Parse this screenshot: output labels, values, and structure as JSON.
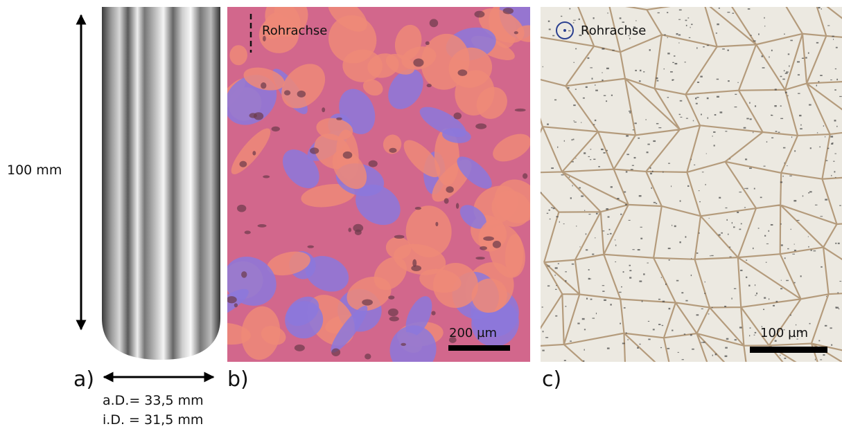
{
  "panel_a": {
    "label": "a)",
    "length": "100 mm",
    "outer_diameter": "a.D.= 33,5 mm",
    "inner_diameter": "i.D. = 31,5 mm"
  },
  "panel_b": {
    "label": "b)",
    "axis_note": "Rohrachse",
    "scale_bar": "200 µm"
  },
  "panel_c": {
    "label": "c)",
    "axis_note": "Rohrachse",
    "scale_bar": "100 µm"
  }
}
